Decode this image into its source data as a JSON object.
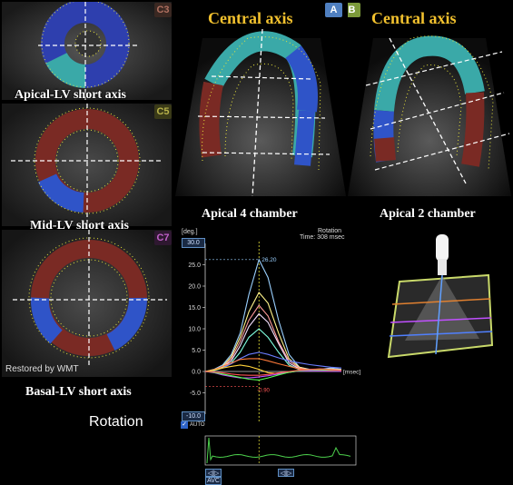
{
  "short_axis": {
    "apical_tag": "C3",
    "mid_tag": "C5",
    "basal_tag": "C7",
    "apical_caption": "Apical-LV short axis",
    "mid_caption": "Mid-LV short axis",
    "basal_caption": "Basal-LV short axis",
    "watermark": "Restored by WMT"
  },
  "long_axis": {
    "left_title": "Central axis",
    "right_title": "Central axis",
    "tag_a": "A",
    "tag_b": "B",
    "apical4_caption": "Apical 4 chamber",
    "apical2_caption": "Apical 2 chamber"
  },
  "bottom_label": "Rotation",
  "graph": {
    "unit_label": "[deg.]",
    "title": "Rotation",
    "time_label": "Time: 308 msec",
    "x_unit": "[msec]",
    "max_box": "30.0",
    "min_box": "-10.0",
    "peak_label": "26.20",
    "min_label": "-0.90",
    "auto_label": "AUTO",
    "avc_label": "AVC",
    "nav_left": "◁|▷",
    "nav_right": "◁|▷"
  },
  "colors": {
    "apical": "#2e3fae",
    "teal": "#3aa9a8",
    "blue": "#2f54c8",
    "red": "#7a2a24",
    "yellow_dot": "#e8e43a",
    "title_gold": "#f2c12e",
    "tag_c3": "#b07060",
    "tag_c5": "#b8b24a",
    "tag_c7": "#9a3fa0",
    "tag_a": "#4f7fc0",
    "tag_b": "#7c9a3a"
  },
  "chart_data": {
    "type": "line",
    "ylabel": "[deg.]",
    "xlabel": "[msec]",
    "ylim": [
      -10,
      30
    ],
    "yticks": [
      -10.0,
      -5.0,
      0.0,
      5.0,
      10.0,
      15.0,
      20.0,
      25.0
    ],
    "x": [
      0,
      50,
      100,
      150,
      200,
      250,
      308,
      360,
      420,
      480,
      540,
      600,
      660,
      720,
      780
    ],
    "series": [
      {
        "color": "#9ad0ff",
        "values": [
          0,
          0.5,
          1.5,
          4,
          9,
          18,
          26.2,
          22,
          12,
          4,
          1,
          0.5,
          0.5,
          0.8,
          0.5
        ]
      },
      {
        "color": "#fff38a",
        "values": [
          0,
          0.4,
          1.2,
          3.5,
          8,
          14,
          18.5,
          16,
          9,
          3,
          1,
          0.4,
          0.5,
          0.6,
          0.4
        ]
      },
      {
        "color": "#ff9a9a",
        "values": [
          0,
          0.3,
          1,
          3,
          7,
          12,
          15.5,
          13,
          7,
          2.5,
          0.8,
          0.3,
          0.4,
          0.5,
          0.3
        ]
      },
      {
        "color": "#f5e0ff",
        "values": [
          0,
          0.3,
          1,
          2.5,
          6,
          10.5,
          13.5,
          11.5,
          6.5,
          2,
          0.6,
          0.2,
          0.3,
          0.4,
          0.2
        ]
      },
      {
        "color": "#7fffe0",
        "values": [
          0,
          0.2,
          0.8,
          2,
          4.5,
          8,
          10,
          8,
          4.5,
          1.5,
          0.4,
          0.2,
          0.3,
          0.3,
          0.2
        ]
      },
      {
        "color": "#6a7dff",
        "values": [
          0,
          0.3,
          0.8,
          1.8,
          3,
          4,
          4.5,
          4,
          3.2,
          2.5,
          2,
          1.6,
          1.3,
          1,
          0.8
        ]
      },
      {
        "color": "#ff7a3a",
        "values": [
          0,
          0.4,
          1.2,
          2,
          2.8,
          3,
          3,
          2.5,
          1.8,
          1.2,
          0.6,
          0.3,
          0.2,
          0.1,
          0.1
        ]
      },
      {
        "color": "#ffd23a",
        "values": [
          0,
          0.3,
          0.8,
          1.2,
          1.5,
          1.2,
          0.5,
          -0.3,
          -0.5,
          -0.2,
          0.2,
          0.4,
          0.6,
          0.4,
          0.2
        ]
      },
      {
        "color": "#c050ff",
        "values": [
          0,
          -0.3,
          -0.8,
          -1.2,
          -1.5,
          -1.5,
          -1.3,
          -1,
          -0.6,
          -0.2,
          0.1,
          0.2,
          0.1,
          0,
          0
        ]
      },
      {
        "color": "#55ff55",
        "values": [
          0,
          -0.2,
          -0.6,
          -1,
          -1.4,
          -1.8,
          -2,
          -1.5,
          -0.8,
          -0.2,
          0.2,
          0.4,
          0.4,
          0.3,
          0.2
        ]
      },
      {
        "color": "#ff5555",
        "values": [
          0,
          -0.1,
          -0.3,
          -0.6,
          -0.8,
          -0.9,
          -0.9,
          -0.7,
          -0.3,
          0,
          0.3,
          0.5,
          0.6,
          0.4,
          0.2
        ]
      }
    ]
  }
}
